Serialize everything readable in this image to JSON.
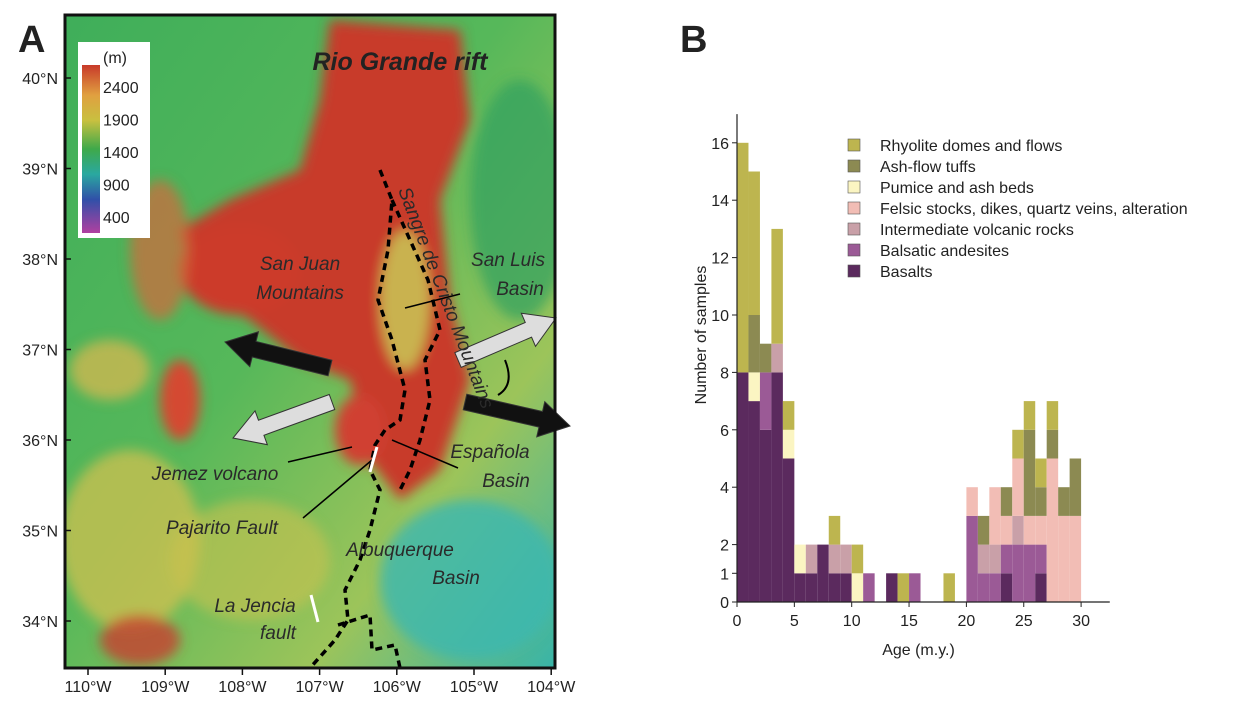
{
  "map": {
    "panel_label": "A",
    "legend_title": "(m)",
    "legend_labels": [
      "2400",
      "1900",
      "1400",
      "900",
      "400"
    ],
    "lat_labels": [
      "40°N",
      "39°N",
      "38°N",
      "37°N",
      "36°N",
      "35°N",
      "34°N"
    ],
    "lon_labels": [
      "110°W",
      "109°W",
      "108°W",
      "107°W",
      "106°W",
      "105°W",
      "104°W"
    ],
    "labels": [
      "Rio Grande rift",
      "San Juan",
      "Mountains",
      "San Luis",
      "Basin",
      "Sangre de Cristo Mountains",
      "Jemez volcano",
      "Española",
      "Basin",
      "Pajarito Fault",
      "Albuquerque",
      "Basin",
      "La Jencia",
      "fault"
    ]
  },
  "chart_data": {
    "type": "histogram",
    "panel_label": "B",
    "x_label": "Age (m.y.)",
    "y_label": "Number of samples",
    "bins": [
      0,
      1,
      2,
      3,
      4,
      5,
      6,
      7,
      8,
      9,
      10,
      11,
      12,
      13,
      14,
      15,
      16,
      17,
      18,
      19,
      20,
      21,
      22,
      23,
      24,
      25,
      26,
      27,
      28,
      29,
      30
    ],
    "series": [
      {
        "name": "Basalts",
        "color": "#5b2a5e",
        "values": [
          8,
          7,
          6,
          8,
          5,
          1,
          1,
          2,
          1,
          1,
          0,
          0,
          0,
          1,
          0,
          0,
          0,
          0,
          0,
          0,
          0,
          0,
          0,
          1,
          0,
          0,
          1,
          0,
          0,
          0
        ]
      },
      {
        "name": "Balsatic andesites",
        "color": "#9b5a96",
        "values": [
          0,
          0,
          2,
          0,
          0,
          0,
          0,
          0,
          0,
          0,
          0,
          1,
          0,
          0,
          0,
          1,
          0,
          0,
          0,
          0,
          3,
          1,
          1,
          1,
          2,
          2,
          1,
          0,
          0,
          0
        ]
      },
      {
        "name": "Intermediate volcanic rocks",
        "color": "#c9a0a8",
        "values": [
          0,
          0,
          0,
          1,
          0,
          0,
          1,
          0,
          1,
          1,
          0,
          0,
          0,
          0,
          0,
          0,
          0,
          0,
          0,
          0,
          0,
          1,
          1,
          0,
          1,
          0,
          0,
          0,
          0,
          0
        ]
      },
      {
        "name": "Felsic stocks, dikes, quartz veins, alteration",
        "color": "#f2bdb5",
        "values": [
          0,
          0,
          0,
          0,
          0,
          0,
          0,
          0,
          0,
          0,
          0,
          0,
          0,
          0,
          0,
          0,
          0,
          0,
          0,
          0,
          1,
          0,
          2,
          1,
          2,
          1,
          1,
          5,
          3,
          3
        ]
      },
      {
        "name": "Pumice and ash beds",
        "color": "#fbf5c2",
        "values": [
          0,
          1,
          0,
          0,
          1,
          1,
          0,
          0,
          0,
          0,
          1,
          0,
          0,
          0,
          0,
          0,
          0,
          0,
          0,
          0,
          0,
          0,
          0,
          0,
          0,
          0,
          0,
          0,
          0,
          0
        ]
      },
      {
        "name": "Ash-flow tuffs",
        "color": "#8c8a52",
        "values": [
          0,
          2,
          1,
          0,
          0,
          0,
          0,
          0,
          0,
          0,
          0,
          0,
          0,
          0,
          0,
          0,
          0,
          0,
          0,
          0,
          0,
          1,
          0,
          1,
          0,
          3,
          1,
          1,
          1,
          2
        ]
      },
      {
        "name": "Rhyolite domes and flows",
        "color": "#bdb54f",
        "values": [
          8,
          5,
          0,
          4,
          1,
          0,
          0,
          0,
          1,
          0,
          1,
          0,
          0,
          0,
          1,
          0,
          0,
          0,
          1,
          0,
          0,
          0,
          0,
          0,
          1,
          1,
          1,
          1,
          0,
          0
        ]
      }
    ],
    "xlim": [
      0,
      32.5
    ],
    "ylim": [
      0,
      17
    ],
    "xticks": [
      0,
      5,
      10,
      15,
      20,
      25,
      30
    ],
    "yticks": [
      0,
      1,
      2,
      4,
      6,
      8,
      10,
      12,
      14,
      16
    ]
  }
}
